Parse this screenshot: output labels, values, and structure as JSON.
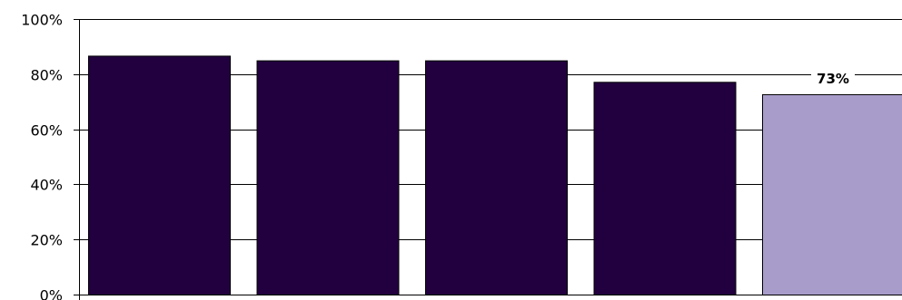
{
  "chart_data": {
    "type": "bar",
    "title": "",
    "xlabel": "",
    "ylabel": "",
    "ylim": [
      0,
      100
    ],
    "yticks": [
      0,
      20,
      40,
      60,
      80,
      100
    ],
    "ytick_labels": [
      "0%",
      "20%",
      "40%",
      "60%",
      "80%",
      "100%"
    ],
    "grid": true,
    "legend": "none",
    "values": [
      86.7,
      85,
      85,
      77.2,
      72.7
    ],
    "bar_colors": [
      "#22003f",
      "#22003f",
      "#22003f",
      "#22003f",
      "#a89ccb"
    ],
    "data_labels": [
      "",
      "",
      "",
      "",
      "73%"
    ]
  }
}
